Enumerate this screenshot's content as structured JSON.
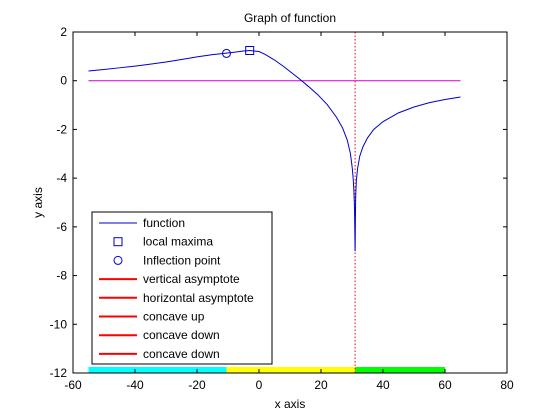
{
  "chart_data": {
    "type": "line",
    "title": "Graph of function",
    "xlabel": "x axis",
    "ylabel": "y axis",
    "xlim": [
      -60,
      80
    ],
    "ylim": [
      -12,
      2
    ],
    "xticks": [
      "-60",
      "-40",
      "-20",
      "0",
      "20",
      "40",
      "60",
      "80"
    ],
    "yticks": [
      "2",
      "0",
      "-2",
      "-4",
      "-6",
      "-8",
      "-10",
      "-12"
    ],
    "grid": false,
    "legend_position": "bottom-left",
    "series": [
      {
        "name": "function",
        "color": "#0000cc",
        "x": [
          -55,
          -50,
          -45,
          -40,
          -35,
          -30,
          -25,
          -20,
          -15,
          -12,
          -8,
          -5,
          -3,
          0,
          2,
          5,
          8,
          10,
          13,
          16,
          19,
          22,
          25,
          27,
          28.5,
          29.5,
          30.1,
          30.4,
          30.6,
          30.8,
          30.85,
          30.9,
          30.95,
          31,
          31.05,
          31.1,
          31.15,
          31.2,
          31.4,
          31.8,
          32.5,
          33.5,
          35,
          37,
          40,
          45,
          50,
          55,
          60,
          65
        ],
        "y": [
          0.4,
          0.46,
          0.53,
          0.6,
          0.68,
          0.77,
          0.87,
          0.98,
          1.07,
          1.11,
          1.17,
          1.22,
          1.24,
          1.2,
          1.08,
          0.85,
          0.58,
          0.38,
          0.08,
          -0.24,
          -0.58,
          -0.98,
          -1.5,
          -1.95,
          -2.45,
          -3.0,
          -3.6,
          -4.05,
          -4.5,
          -5.2,
          -5.6,
          -6.1,
          -6.6,
          -7.0,
          -6.4,
          -5.7,
          -5.1,
          -4.7,
          -4.1,
          -3.6,
          -3.1,
          -2.72,
          -2.35,
          -2.0,
          -1.68,
          -1.32,
          -1.08,
          -0.9,
          -0.77,
          -0.67
        ]
      },
      {
        "name": "local maxima",
        "color": "#0000cc",
        "marker": "square",
        "x": [
          -3
        ],
        "y": [
          1.24
        ]
      },
      {
        "name": "Inflection point",
        "color": "#0000cc",
        "marker": "circle",
        "x": [
          -10.5
        ],
        "y": [
          1.12
        ]
      },
      {
        "name": "vertical asymptote",
        "color": "#ff0000",
        "style": "dotted",
        "x": [
          31,
          31
        ],
        "y": [
          -12,
          2
        ]
      },
      {
        "name": "horizontal asymptote",
        "color": "#cc00cc",
        "x": [
          -55,
          65
        ],
        "y": [
          0,
          0
        ]
      },
      {
        "name": "concave up",
        "color": "#00ffff",
        "x": [
          -55,
          -10.5
        ],
        "y": [
          -12,
          -12
        ]
      },
      {
        "name": "concave down",
        "color": "#ffff00",
        "x": [
          -10.5,
          31
        ],
        "y": [
          -12,
          -12
        ]
      },
      {
        "name": "concave down",
        "color": "#00ff00",
        "x": [
          31,
          60
        ],
        "y": [
          -12,
          -12
        ]
      }
    ],
    "legend": [
      {
        "label": "function",
        "color": "#0000cc",
        "symbol": "line"
      },
      {
        "label": "local maxima",
        "color": "#0000cc",
        "symbol": "square"
      },
      {
        "label": "Inflection point",
        "color": "#0000cc",
        "symbol": "circle"
      },
      {
        "label": "vertical asymptote",
        "color": "#ff0000",
        "symbol": "line"
      },
      {
        "label": "horizontal asymptote",
        "color": "#ff0000",
        "symbol": "line"
      },
      {
        "label": "concave up",
        "color": "#ff0000",
        "symbol": "line"
      },
      {
        "label": "concave down",
        "color": "#ff0000",
        "symbol": "line"
      },
      {
        "label": "concave down",
        "color": "#ff0000",
        "symbol": "line"
      }
    ]
  }
}
